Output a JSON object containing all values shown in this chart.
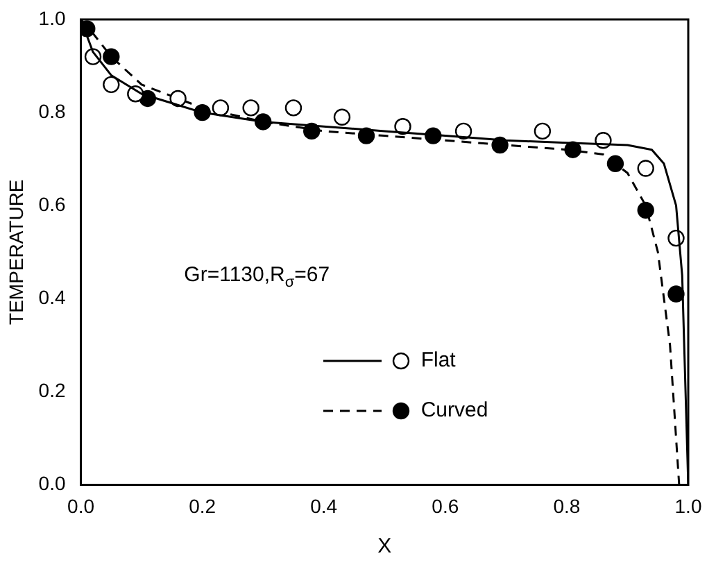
{
  "chart_data": {
    "type": "line",
    "xlabel": "X",
    "ylabel": "TEMPERATURE",
    "xlim": [
      0,
      1
    ],
    "ylim": [
      0,
      1
    ],
    "xticks": [
      {
        "value": 0,
        "label": "0.0"
      },
      {
        "value": 0.2,
        "label": "0.2"
      },
      {
        "value": 0.4,
        "label": "0.4"
      },
      {
        "value": 0.6,
        "label": "0.6"
      },
      {
        "value": 0.8,
        "label": "0.8"
      },
      {
        "value": 1,
        "label": "1.0"
      }
    ],
    "yticks": [
      {
        "value": 0,
        "label": "0.0"
      },
      {
        "value": 0.2,
        "label": "0.2"
      },
      {
        "value": 0.4,
        "label": "0.4"
      },
      {
        "value": 0.6,
        "label": "0.6"
      },
      {
        "value": 0.8,
        "label": "0.8"
      },
      {
        "value": 1,
        "label": "1.0"
      }
    ],
    "grid": false,
    "legend": "bottom right",
    "annotations": [
      "Gr=1130,R$_{σ}$=67"
    ],
    "series": [
      {
        "name": "Flat",
        "line_style": "solid",
        "marker": "none",
        "color": "#000000",
        "x": [
          0,
          0.02,
          0.05,
          0.1,
          0.2,
          0.3,
          0.4,
          0.5,
          0.6,
          0.7,
          0.8,
          0.9,
          0.94,
          0.96,
          0.98,
          0.99,
          1.0
        ],
        "values": [
          1.0,
          0.93,
          0.88,
          0.84,
          0.8,
          0.78,
          0.77,
          0.76,
          0.75,
          0.74,
          0.735,
          0.73,
          0.72,
          0.69,
          0.6,
          0.45,
          0.0
        ]
      },
      {
        "type": "scatter",
        "marker": "circle",
        "color": "#ffffff",
        "x": [
          0.02,
          0.05,
          0.09,
          0.16,
          0.23,
          0.28,
          0.35,
          0.43,
          0.53,
          0.63,
          0.76,
          0.86,
          0.93,
          0.98
        ],
        "values": [
          0.92,
          0.86,
          0.84,
          0.83,
          0.81,
          0.81,
          0.81,
          0.79,
          0.77,
          0.76,
          0.76,
          0.74,
          0.68,
          0.53
        ]
      },
      {
        "name": "Curved",
        "line_style": "dashed",
        "marker": "none",
        "color": "#000000",
        "x": [
          0,
          0.02,
          0.05,
          0.1,
          0.2,
          0.3,
          0.4,
          0.5,
          0.6,
          0.7,
          0.8,
          0.86,
          0.9,
          0.93,
          0.95,
          0.97,
          0.98,
          0.985
        ],
        "values": [
          1.0,
          0.97,
          0.92,
          0.86,
          0.81,
          0.78,
          0.76,
          0.75,
          0.74,
          0.73,
          0.72,
          0.71,
          0.67,
          0.6,
          0.5,
          0.3,
          0.1,
          0.0
        ]
      },
      {
        "type": "scatter",
        "marker": "circle",
        "color": "#000000",
        "x": [
          0.01,
          0.05,
          0.11,
          0.2,
          0.3,
          0.38,
          0.47,
          0.58,
          0.69,
          0.81,
          0.88,
          0.93,
          0.98
        ],
        "values": [
          0.98,
          0.92,
          0.83,
          0.8,
          0.78,
          0.76,
          0.75,
          0.75,
          0.73,
          0.72,
          0.69,
          0.59,
          0.41
        ]
      }
    ]
  }
}
